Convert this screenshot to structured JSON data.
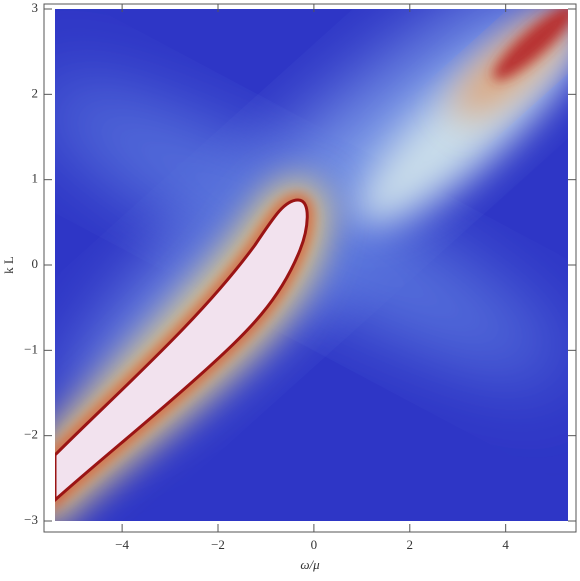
{
  "chart_data": {
    "type": "density",
    "xlabel": "ω/μ",
    "ylabel": "k L",
    "xlim": [
      -5.4,
      5.3
    ],
    "ylim": [
      -3,
      3
    ],
    "xticks": [
      {
        "value": -4,
        "label": "−4"
      },
      {
        "value": -2,
        "label": "−2"
      },
      0,
      2,
      4
    ],
    "yticks": [
      {
        "value": -3,
        "label": "−3"
      },
      {
        "value": -2,
        "label": "−2"
      },
      {
        "value": -1,
        "label": "−1"
      },
      0,
      1,
      2,
      3
    ]
  }
}
